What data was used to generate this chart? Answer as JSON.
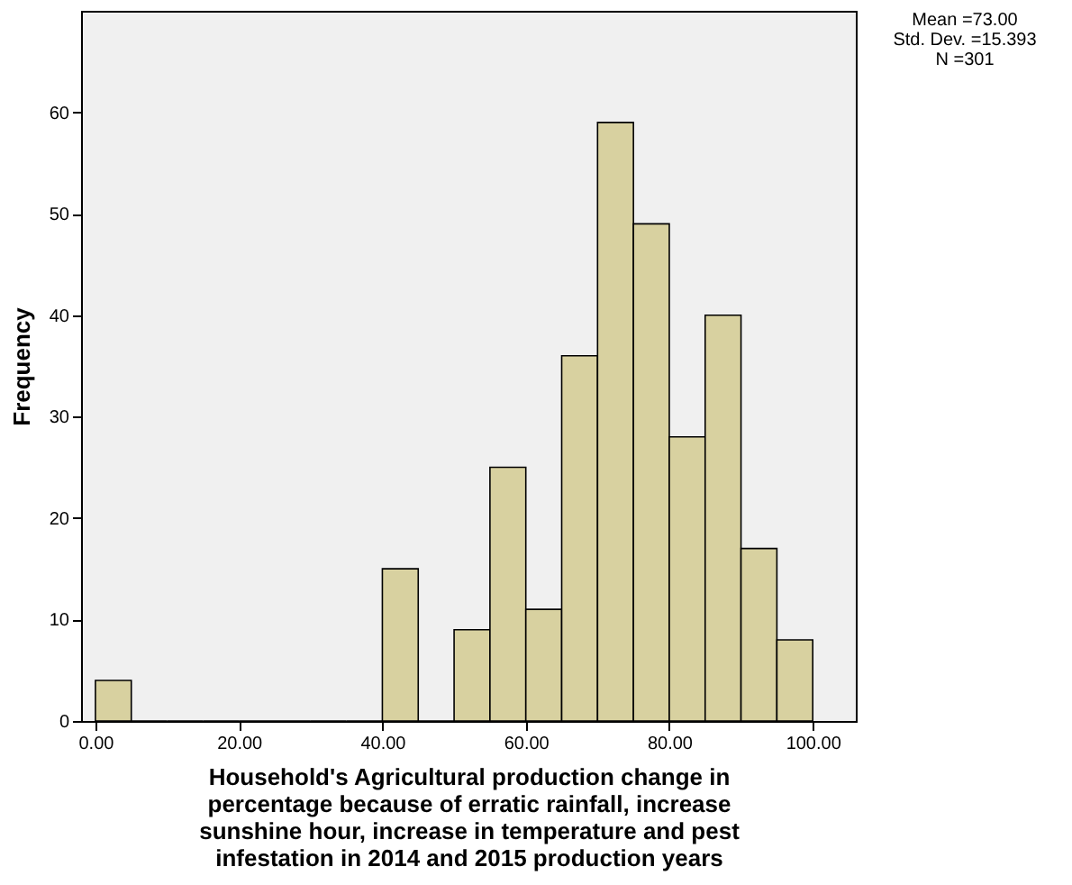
{
  "chart_data": {
    "type": "histogram",
    "xlabel": "Household's Agricultural production change in percentage because of erratic rainfall, increase sunshine hour, increase in temperature and pest infestation in 2014 and 2015 production years",
    "ylabel": "Frequency",
    "bins": [
      0,
      5,
      10,
      15,
      20,
      25,
      30,
      35,
      40,
      45,
      50,
      55,
      60,
      65,
      70,
      75,
      80,
      85,
      90,
      95,
      100
    ],
    "values": [
      4,
      0,
      0,
      0,
      0,
      0,
      0,
      0,
      15,
      0,
      9,
      25,
      11,
      36,
      59,
      49,
      28,
      40,
      17,
      8
    ],
    "color": "#d8d1a0",
    "xlim": [
      -2,
      106
    ],
    "ylim": [
      0,
      70
    ],
    "xticks": [
      {
        "value": 0,
        "label": "0.00"
      },
      {
        "value": 20,
        "label": "20.00"
      },
      {
        "value": 40,
        "label": "40.00"
      },
      {
        "value": 60,
        "label": "60.00"
      },
      {
        "value": 80,
        "label": "80.00"
      },
      {
        "value": 100,
        "label": "100.00"
      }
    ],
    "yticks": [
      0,
      10,
      20,
      30,
      40,
      50,
      60
    ],
    "annotations": [
      "Mean =73.00",
      "Std. Dev. =15.393",
      "N =301"
    ]
  }
}
